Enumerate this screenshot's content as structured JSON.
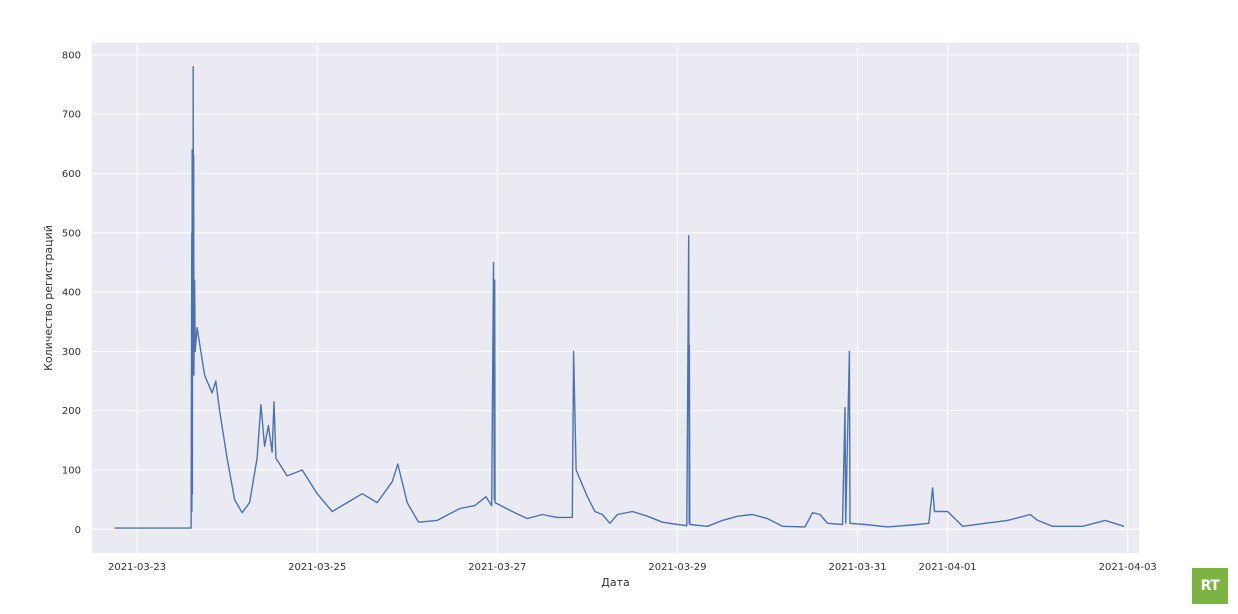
{
  "chart_data": {
    "type": "line",
    "title": "",
    "xlabel": "Дата",
    "ylabel": "Количество регистраций",
    "ylim": [
      -40,
      820
    ],
    "xlim": [
      "2021-03-22T12:00",
      "2021-04-03T03:00"
    ],
    "yticks": [
      0,
      100,
      200,
      300,
      400,
      500,
      600,
      700,
      800
    ],
    "xticks": [
      "2021-03-23",
      "2021-03-25",
      "2021-03-27",
      "2021-03-29",
      "2021-03-31",
      "2021-04-01",
      "2021-04-03"
    ],
    "grid": true,
    "background": "#eaeaf2",
    "line_color": "#4c72b0",
    "series": [
      {
        "values": [
          [
            "2021-03-22T18:00",
            2
          ],
          [
            "2021-03-23T12:00",
            2
          ],
          [
            "2021-03-23T14:24",
            2
          ],
          [
            "2021-03-23T14:36",
            500
          ],
          [
            "2021-03-23T14:38",
            30
          ],
          [
            "2021-03-23T14:42",
            640
          ],
          [
            "2021-03-23T14:46",
            60
          ],
          [
            "2021-03-23T14:50",
            600
          ],
          [
            "2021-03-23T14:55",
            280
          ],
          [
            "2021-03-23T14:58",
            780
          ],
          [
            "2021-03-23T15:02",
            280
          ],
          [
            "2021-03-23T15:06",
            630
          ],
          [
            "2021-03-23T15:10",
            260
          ],
          [
            "2021-03-23T15:20",
            420
          ],
          [
            "2021-03-23T15:30",
            300
          ],
          [
            "2021-03-23T16:00",
            340
          ],
          [
            "2021-03-23T18:00",
            260
          ],
          [
            "2021-03-23T20:00",
            230
          ],
          [
            "2021-03-23T21:00",
            250
          ],
          [
            "2021-03-23T22:00",
            200
          ],
          [
            "2021-03-24T00:00",
            120
          ],
          [
            "2021-03-24T02:00",
            50
          ],
          [
            "2021-03-24T04:00",
            28
          ],
          [
            "2021-03-24T06:00",
            45
          ],
          [
            "2021-03-24T08:00",
            120
          ],
          [
            "2021-03-24T09:00",
            210
          ],
          [
            "2021-03-24T10:00",
            140
          ],
          [
            "2021-03-24T11:00",
            175
          ],
          [
            "2021-03-24T12:00",
            130
          ],
          [
            "2021-03-24T12:30",
            215
          ],
          [
            "2021-03-24T13:00",
            120
          ],
          [
            "2021-03-24T16:00",
            90
          ],
          [
            "2021-03-24T20:00",
            100
          ],
          [
            "2021-03-25T00:00",
            60
          ],
          [
            "2021-03-25T04:00",
            30
          ],
          [
            "2021-03-25T08:00",
            45
          ],
          [
            "2021-03-25T12:00",
            60
          ],
          [
            "2021-03-25T16:00",
            45
          ],
          [
            "2021-03-25T20:00",
            80
          ],
          [
            "2021-03-25T21:30",
            110
          ],
          [
            "2021-03-26T00:00",
            45
          ],
          [
            "2021-03-26T03:00",
            12
          ],
          [
            "2021-03-26T08:00",
            15
          ],
          [
            "2021-03-26T14:00",
            35
          ],
          [
            "2021-03-26T18:00",
            40
          ],
          [
            "2021-03-26T21:00",
            55
          ],
          [
            "2021-03-26T22:30",
            40
          ],
          [
            "2021-03-26T23:00",
            450
          ],
          [
            "2021-03-26T23:12",
            50
          ],
          [
            "2021-03-26T23:18",
            420
          ],
          [
            "2021-03-26T23:24",
            45
          ],
          [
            "2021-03-27T04:00",
            30
          ],
          [
            "2021-03-27T08:00",
            18
          ],
          [
            "2021-03-27T12:00",
            25
          ],
          [
            "2021-03-27T16:00",
            20
          ],
          [
            "2021-03-27T20:00",
            20
          ],
          [
            "2021-03-27T20:20",
            300
          ],
          [
            "2021-03-27T21:00",
            100
          ],
          [
            "2021-03-28T00:00",
            55
          ],
          [
            "2021-03-28T02:00",
            30
          ],
          [
            "2021-03-28T04:00",
            25
          ],
          [
            "2021-03-28T06:00",
            10
          ],
          [
            "2021-03-28T08:00",
            25
          ],
          [
            "2021-03-28T12:00",
            30
          ],
          [
            "2021-03-28T16:00",
            22
          ],
          [
            "2021-03-28T20:00",
            12
          ],
          [
            "2021-03-29T00:00",
            8
          ],
          [
            "2021-03-29T02:30",
            6
          ],
          [
            "2021-03-29T03:00",
            495
          ],
          [
            "2021-03-29T03:08",
            10
          ],
          [
            "2021-03-29T03:12",
            310
          ],
          [
            "2021-03-29T03:18",
            8
          ],
          [
            "2021-03-29T08:00",
            5
          ],
          [
            "2021-03-29T12:00",
            15
          ],
          [
            "2021-03-29T16:00",
            22
          ],
          [
            "2021-03-29T20:00",
            25
          ],
          [
            "2021-03-30T00:00",
            18
          ],
          [
            "2021-03-30T04:00",
            5
          ],
          [
            "2021-03-30T10:00",
            4
          ],
          [
            "2021-03-30T12:00",
            28
          ],
          [
            "2021-03-30T14:00",
            25
          ],
          [
            "2021-03-30T16:00",
            10
          ],
          [
            "2021-03-30T20:00",
            8
          ],
          [
            "2021-03-30T20:40",
            205
          ],
          [
            "2021-03-30T20:50",
            10
          ],
          [
            "2021-03-30T21:50",
            300
          ],
          [
            "2021-03-30T22:00",
            10
          ],
          [
            "2021-03-31T02:00",
            8
          ],
          [
            "2021-03-31T08:00",
            4
          ],
          [
            "2021-03-31T16:00",
            8
          ],
          [
            "2021-03-31T19:00",
            10
          ],
          [
            "2021-03-31T20:00",
            70
          ],
          [
            "2021-03-31T20:30",
            30
          ],
          [
            "2021-04-01T00:00",
            30
          ],
          [
            "2021-04-01T04:00",
            5
          ],
          [
            "2021-04-01T10:00",
            10
          ],
          [
            "2021-04-01T16:00",
            15
          ],
          [
            "2021-04-01T22:00",
            25
          ],
          [
            "2021-04-02T00:00",
            15
          ],
          [
            "2021-04-02T04:00",
            5
          ],
          [
            "2021-04-02T12:00",
            5
          ],
          [
            "2021-04-02T18:00",
            15
          ],
          [
            "2021-04-02T23:00",
            5
          ]
        ]
      }
    ]
  },
  "logo": {
    "text": "RT",
    "color": "#7cb342"
  }
}
